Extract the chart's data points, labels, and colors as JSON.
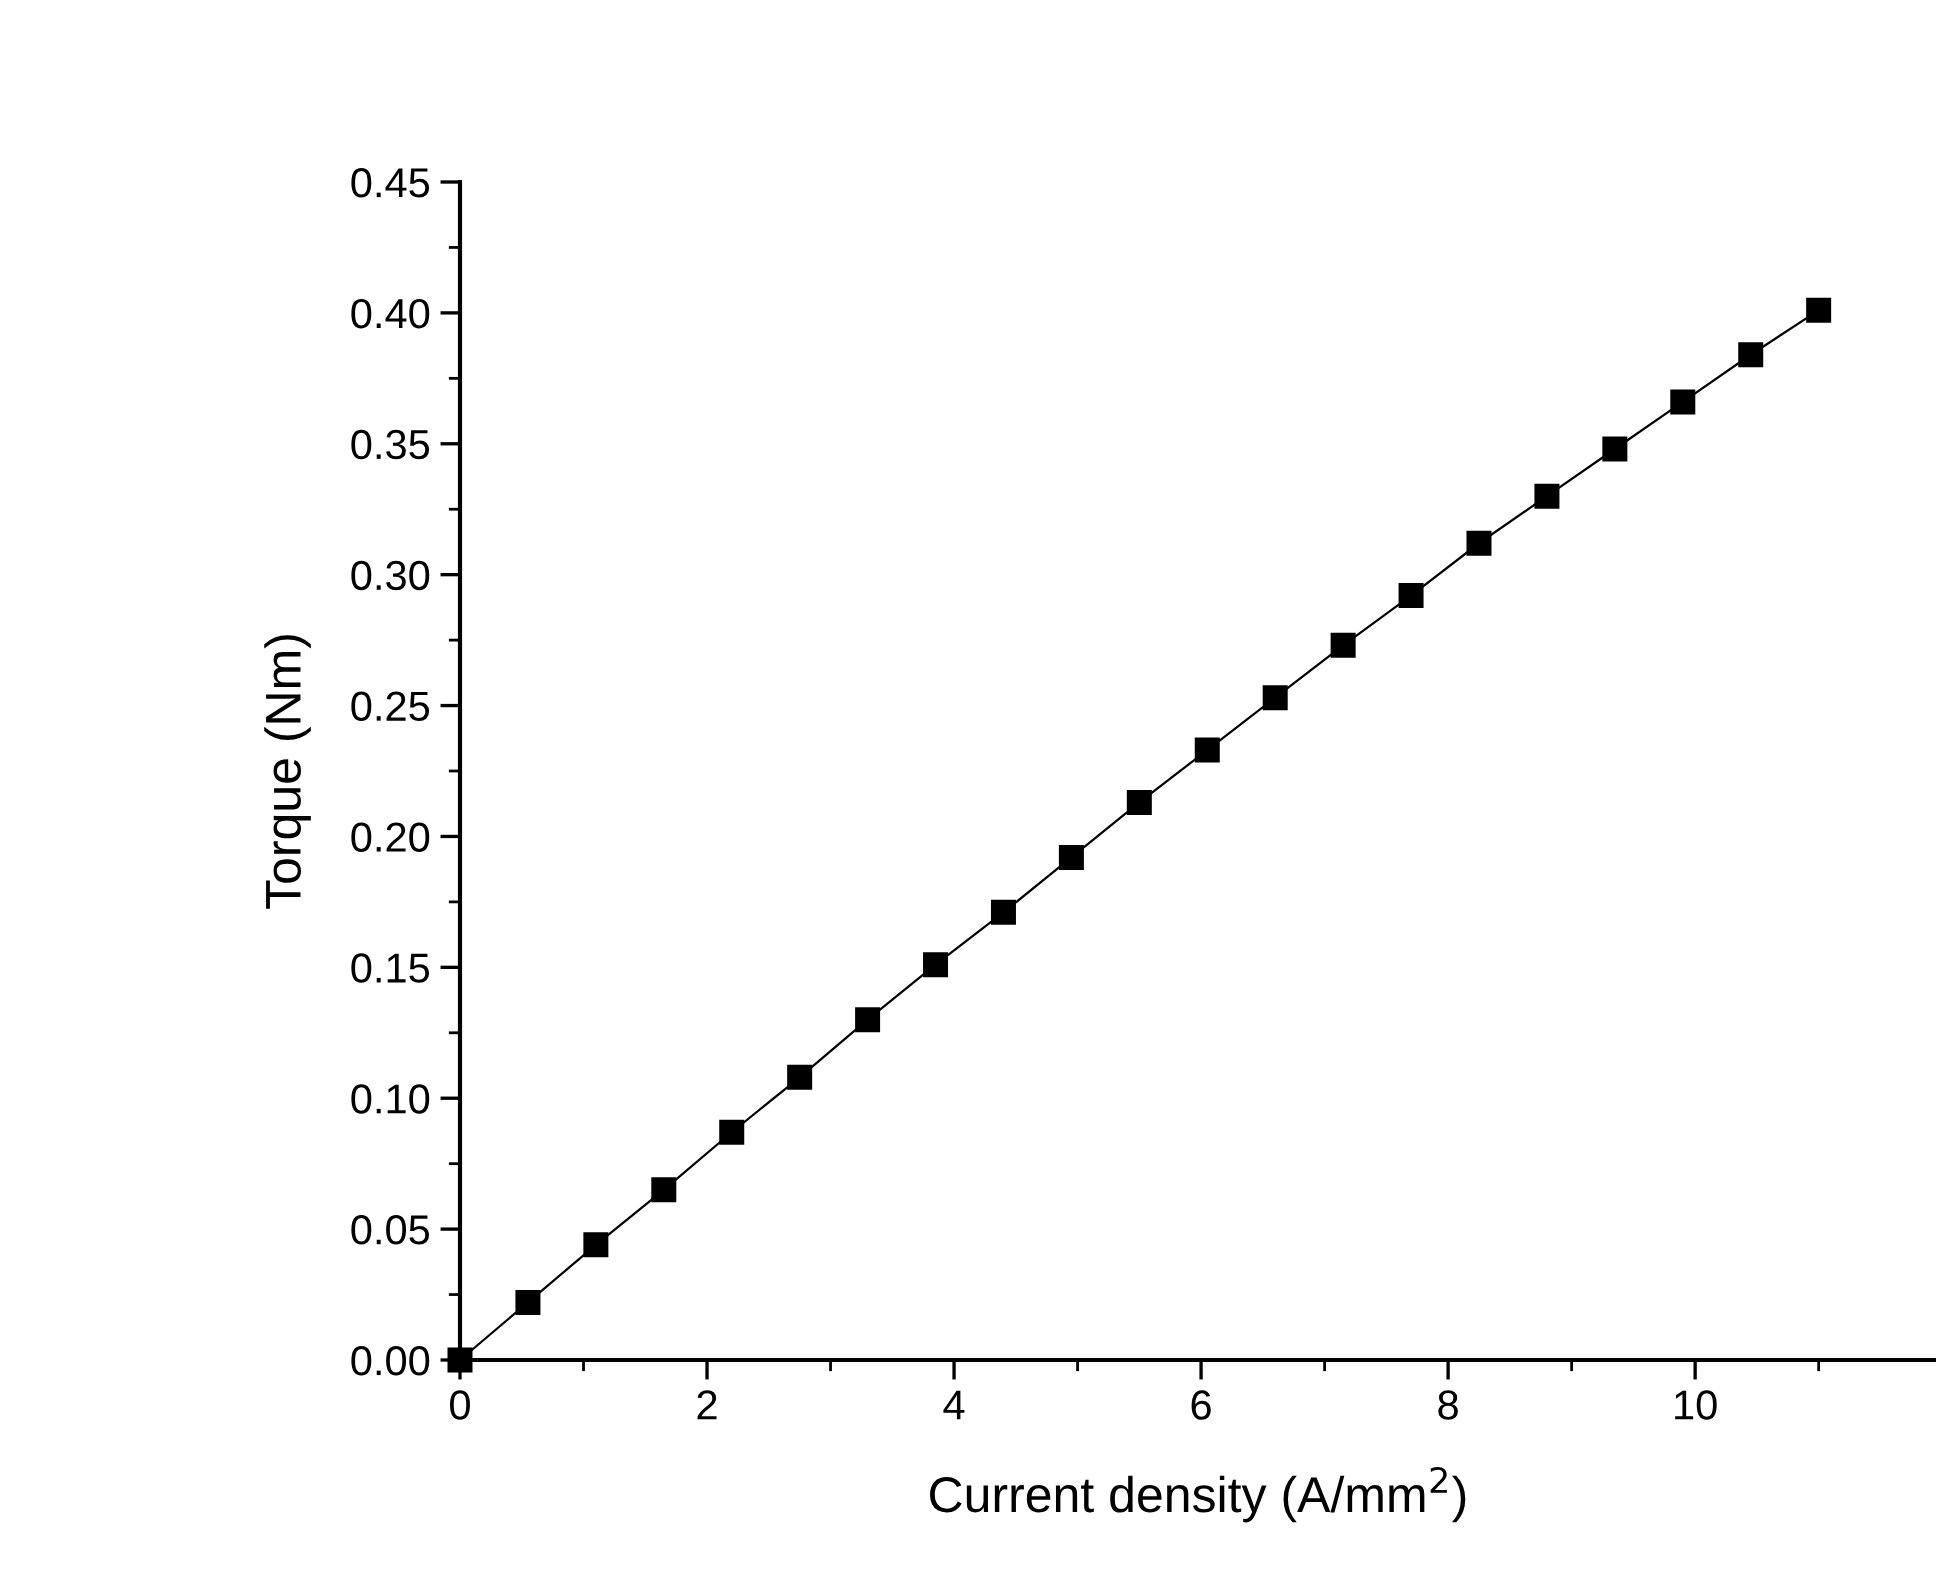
{
  "chart_data": {
    "type": "line",
    "xlabel": "Current density (A/mm$^{2}$)",
    "ylabel": "Torque (Nm)",
    "x": [
      0,
      0.55,
      1.1,
      1.65,
      2.2,
      2.75,
      3.3,
      3.85,
      4.4,
      4.95,
      5.5,
      6.05,
      6.6,
      7.15,
      7.7,
      8.25,
      8.8,
      9.35,
      9.9,
      10.45,
      11
    ],
    "series": [
      {
        "color": "#000000",
        "values": [
          0,
          0.022,
          0.044,
          0.065,
          0.087,
          0.108,
          0.13,
          0.151,
          0.171,
          0.192,
          0.213,
          0.233,
          0.253,
          0.273,
          0.292,
          0.312,
          0.33,
          0.348,
          0.366,
          0.384,
          0.401
        ]
      }
    ],
    "marker": "square",
    "line_style": "solid",
    "grid": false,
    "legend": false,
    "xlim": [
      0,
      11.95
    ],
    "xticks": [
      0,
      2,
      4,
      6,
      8,
      10
    ],
    "ylim": [
      0,
      0.45
    ],
    "yticks": [
      {
        "value": 0,
        "label": "0.00"
      },
      {
        "value": 0.05,
        "label": "0.05"
      },
      {
        "value": 0.1,
        "label": "0.10"
      },
      {
        "value": 0.15,
        "label": "0.15"
      },
      {
        "value": 0.2,
        "label": "0.20"
      },
      {
        "value": 0.25,
        "label": "0.25"
      },
      {
        "value": 0.3,
        "label": "0.30"
      },
      {
        "value": 0.35,
        "label": "0.35"
      },
      {
        "value": 0.4,
        "label": "0.40"
      },
      {
        "value": 0.45,
        "label": "0.45"
      }
    ]
  }
}
